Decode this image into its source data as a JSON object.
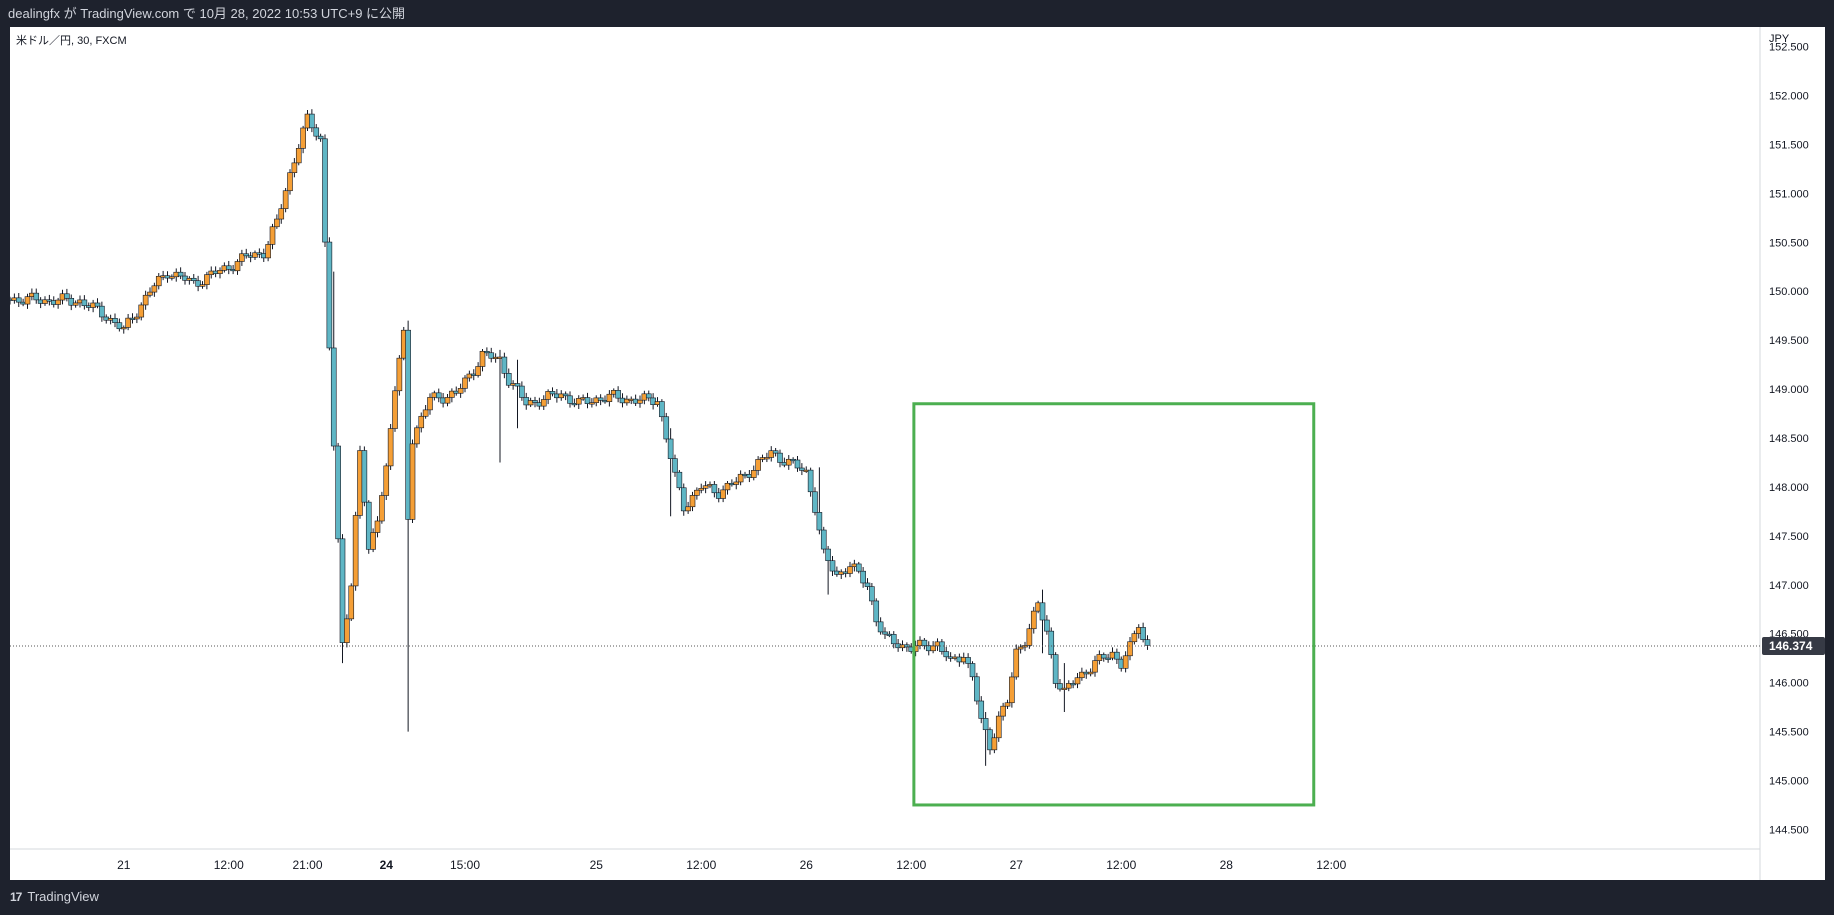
{
  "header": {
    "publish_text": "dealingfx が TradingView.com で 10月 28, 2022 10:53 UTC+9 に公開"
  },
  "chart": {
    "symbol_label": "米ドル／円, 30, FXCM",
    "currency_label": "JPY",
    "last_price_label": "146.374"
  },
  "footer": {
    "brand": "TradingView",
    "logo_glyph": "17"
  },
  "colors": {
    "up": "#f59f36",
    "down": "#5fb6c5",
    "highlight": "#4caf50",
    "price_tag": "#363a45"
  },
  "chart_data": {
    "type": "candlestick",
    "title": "米ドル／円, 30, FXCM",
    "ylabel": "JPY",
    "ylim": [
      144.3,
      152.7
    ],
    "yticks": [
      "144.500",
      "145.000",
      "145.500",
      "146.000",
      "146.500",
      "147.000",
      "147.500",
      "148.000",
      "148.500",
      "149.000",
      "149.500",
      "150.000",
      "150.500",
      "151.000",
      "151.500",
      "152.000",
      "152.500"
    ],
    "x_range_hours": [
      -13,
      187
    ],
    "xticks": [
      {
        "h": 0,
        "label": "21",
        "bold": false
      },
      {
        "h": 12,
        "label": "12:00",
        "bold": false
      },
      {
        "h": 21,
        "label": "21:00",
        "bold": false
      },
      {
        "h": 30,
        "label": "24",
        "bold": true
      },
      {
        "h": 39,
        "label": "15:00",
        "bold": false
      },
      {
        "h": 54,
        "label": "25",
        "bold": false
      },
      {
        "h": 66,
        "label": "12:00",
        "bold": false
      },
      {
        "h": 78,
        "label": "26",
        "bold": false
      },
      {
        "h": 90,
        "label": "12:00",
        "bold": false
      },
      {
        "h": 102,
        "label": "27",
        "bold": false
      },
      {
        "h": 114,
        "label": "12:00",
        "bold": false
      },
      {
        "h": 126,
        "label": "28",
        "bold": false
      },
      {
        "h": 138,
        "label": "12:00",
        "bold": false
      }
    ],
    "last_price": 146.374,
    "highlight_box": {
      "h_start": 90.3,
      "h_end": 136.0,
      "price_top": 148.85,
      "price_bottom": 144.75
    },
    "anchors": [
      [
        -13,
        149.92
      ],
      [
        -5,
        149.9
      ],
      [
        -2,
        149.75
      ],
      [
        0,
        149.6
      ],
      [
        3,
        150.0
      ],
      [
        5,
        150.2
      ],
      [
        8,
        150.08
      ],
      [
        12,
        150.25
      ],
      [
        14,
        150.35
      ],
      [
        16,
        150.4
      ],
      [
        17.5,
        150.7
      ],
      [
        19,
        151.2
      ],
      [
        20,
        151.5
      ],
      [
        21,
        151.75
      ],
      [
        22.5,
        151.55
      ],
      [
        23.2,
        150.1
      ],
      [
        24,
        148.4
      ],
      [
        25,
        146.4
      ],
      [
        26,
        147.0
      ],
      [
        27,
        148.4
      ],
      [
        28,
        147.3
      ],
      [
        29,
        147.7
      ],
      [
        30,
        148.2
      ],
      [
        31,
        149.0
      ],
      [
        32,
        149.55
      ],
      [
        32.5,
        147.7
      ],
      [
        33,
        148.5
      ],
      [
        35,
        148.9
      ],
      [
        38,
        148.95
      ],
      [
        40,
        149.2
      ],
      [
        41,
        149.35
      ],
      [
        43,
        149.3
      ],
      [
        44,
        149.1
      ],
      [
        46,
        148.85
      ],
      [
        48,
        148.9
      ],
      [
        50,
        148.95
      ],
      [
        52,
        148.85
      ],
      [
        54,
        148.9
      ],
      [
        56,
        148.92
      ],
      [
        59,
        148.88
      ],
      [
        61,
        148.9
      ],
      [
        62,
        148.5
      ],
      [
        63,
        148.1
      ],
      [
        64,
        147.8
      ],
      [
        66,
        148.0
      ],
      [
        68,
        147.95
      ],
      [
        70,
        148.05
      ],
      [
        72,
        148.2
      ],
      [
        74,
        148.35
      ],
      [
        76,
        148.25
      ],
      [
        78,
        148.15
      ],
      [
        79,
        147.8
      ],
      [
        80,
        147.3
      ],
      [
        81.5,
        147.1
      ],
      [
        83,
        147.2
      ],
      [
        85,
        147.0
      ],
      [
        86,
        146.65
      ],
      [
        87,
        146.45
      ],
      [
        90,
        146.35
      ],
      [
        93,
        146.4
      ],
      [
        94.5,
        146.2
      ],
      [
        96,
        146.3
      ],
      [
        97,
        146.05
      ],
      [
        98,
        145.6
      ],
      [
        99,
        145.35
      ],
      [
        100,
        145.65
      ],
      [
        101,
        145.8
      ],
      [
        102,
        146.3
      ],
      [
        103,
        146.45
      ],
      [
        104.5,
        146.8
      ],
      [
        105.5,
        146.5
      ],
      [
        106.5,
        146.05
      ],
      [
        107.5,
        145.9
      ],
      [
        109,
        146.05
      ],
      [
        111,
        146.2
      ],
      [
        113,
        146.3
      ],
      [
        114,
        146.2
      ],
      [
        115,
        146.35
      ],
      [
        116,
        146.6
      ],
      [
        116.5,
        146.45
      ],
      [
        117,
        146.374
      ]
    ],
    "spikes": [
      {
        "h": 23.8,
        "high": 150.2,
        "low": 148.5
      },
      {
        "h": 25.2,
        "high": 147.2,
        "low": 146.2
      },
      {
        "h": 32.3,
        "high": 149.7,
        "low": 145.5
      },
      {
        "h": 43.0,
        "high": 149.4,
        "low": 148.25
      },
      {
        "h": 45.2,
        "high": 149.3,
        "low": 148.6
      },
      {
        "h": 62.5,
        "high": 148.6,
        "low": 147.7
      },
      {
        "h": 79.5,
        "high": 148.2,
        "low": 147.6
      },
      {
        "h": 80.6,
        "high": 147.3,
        "low": 146.9
      },
      {
        "h": 98.7,
        "high": 145.7,
        "low": 145.15
      },
      {
        "h": 105.0,
        "high": 146.95,
        "low": 146.3
      },
      {
        "h": 107.6,
        "high": 146.2,
        "low": 145.7
      }
    ]
  }
}
